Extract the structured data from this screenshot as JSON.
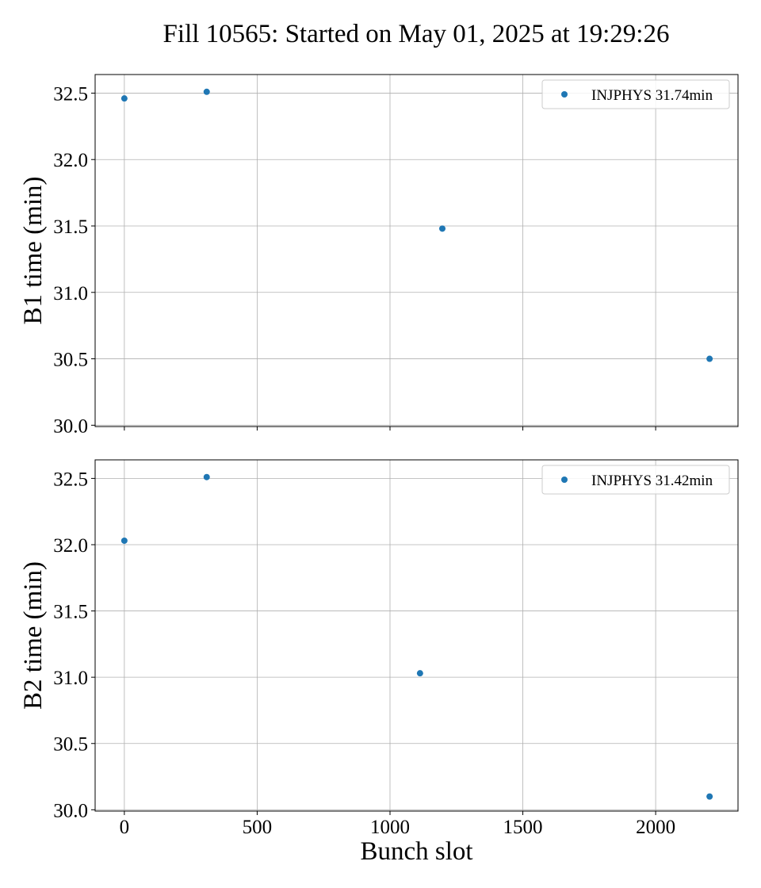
{
  "figure": {
    "title": "Fill 10565: Started on May 01, 2025 at 19:29:26"
  },
  "chart_data": [
    {
      "type": "scatter",
      "ylabel": "B1 time (min)",
      "xlabel": "",
      "xlim": [
        -110,
        2310
      ],
      "ylim": [
        29.99,
        32.64
      ],
      "xticks": [
        0,
        500,
        1000,
        1500,
        2000
      ],
      "xtick_labels_visible": false,
      "yticks": [
        30.0,
        30.5,
        31.0,
        31.5,
        32.0,
        32.5
      ],
      "ytick_labels": [
        "30.0",
        "30.5",
        "31.0",
        "31.5",
        "32.0",
        "32.5"
      ],
      "grid": true,
      "legend_position": "upper right",
      "marker_color": "#1f77b4",
      "series": [
        {
          "name": "INJPHYS 31.74min",
          "points": [
            {
              "x": 0,
              "y": 32.46
            },
            {
              "x": 310,
              "y": 32.51
            },
            {
              "x": 1197,
              "y": 31.48
            },
            {
              "x": 2203,
              "y": 30.5
            }
          ]
        }
      ]
    },
    {
      "type": "scatter",
      "ylabel": "B2 time (min)",
      "xlabel": "Bunch slot",
      "xlim": [
        -110,
        2310
      ],
      "ylim": [
        29.99,
        32.64
      ],
      "xticks": [
        0,
        500,
        1000,
        1500,
        2000
      ],
      "xtick_labels": [
        "0",
        "500",
        "1000",
        "1500",
        "2000"
      ],
      "xtick_labels_visible": true,
      "yticks": [
        30.0,
        30.5,
        31.0,
        31.5,
        32.0,
        32.5
      ],
      "ytick_labels": [
        "30.0",
        "30.5",
        "31.0",
        "31.5",
        "32.0",
        "32.5"
      ],
      "grid": true,
      "legend_position": "upper right",
      "marker_color": "#1f77b4",
      "series": [
        {
          "name": "INJPHYS 31.42min",
          "points": [
            {
              "x": 0,
              "y": 32.03
            },
            {
              "x": 310,
              "y": 32.51
            },
            {
              "x": 1113,
              "y": 31.03
            },
            {
              "x": 2203,
              "y": 30.1
            }
          ]
        }
      ]
    }
  ]
}
